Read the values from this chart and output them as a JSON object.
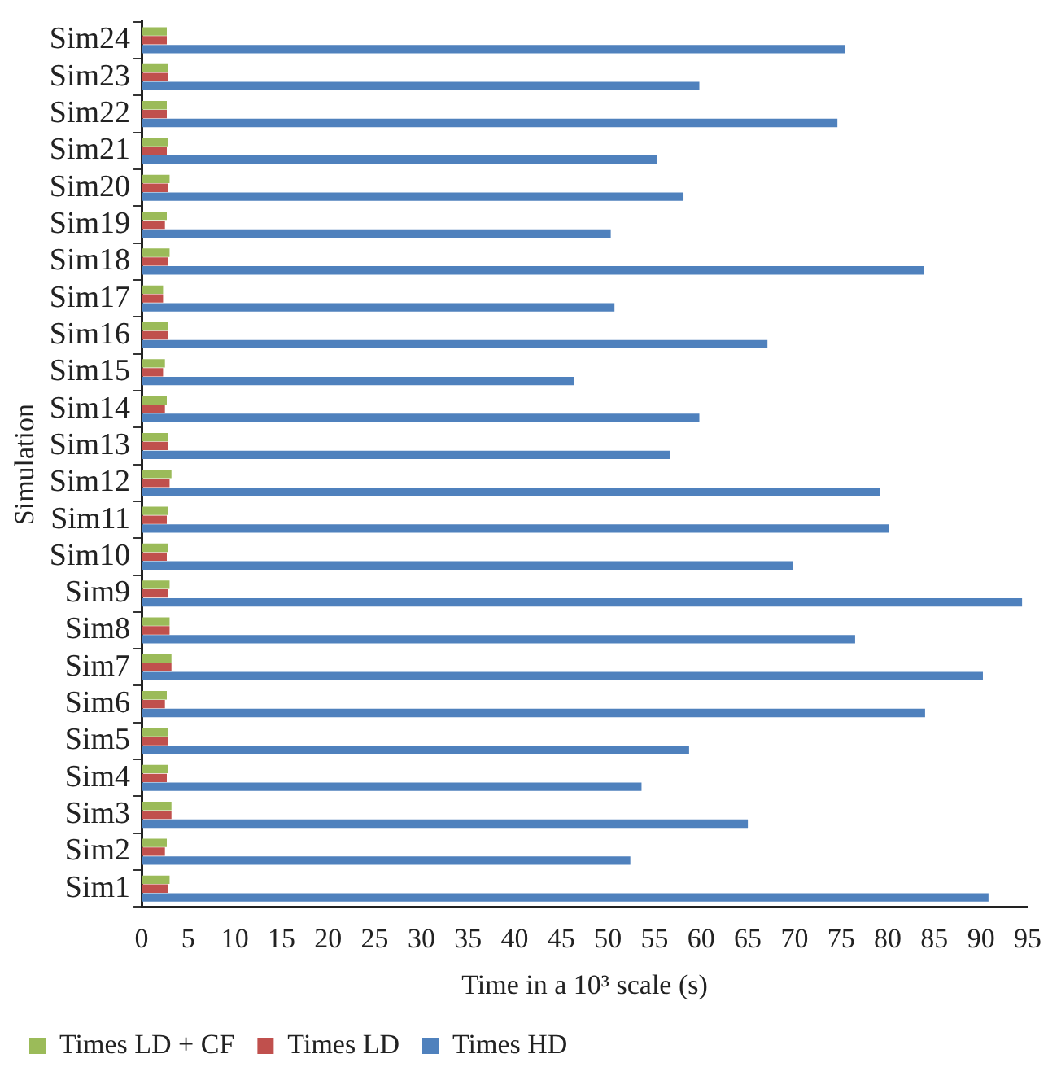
{
  "chart_data": {
    "type": "bar",
    "orientation": "horizontal",
    "xlabel": "Time in a 10³ scale (s)",
    "ylabel": "Simulation",
    "categories": [
      "Sim24",
      "Sim23",
      "Sim22",
      "Sim21",
      "Sim20",
      "Sim19",
      "Sim18",
      "Sim17",
      "Sim16",
      "Sim15",
      "Sim14",
      "Sim13",
      "Sim12",
      "Sim11",
      "Sim10",
      "Sim9",
      "Sim8",
      "Sim7",
      "Sim6",
      "Sim5",
      "Sim4",
      "Sim3",
      "Sim2",
      "Sim1"
    ],
    "series": [
      {
        "name": "Times LD + CF",
        "color": "#9bbb59",
        "values": [
          2.7,
          2.8,
          2.7,
          2.8,
          3.0,
          2.7,
          3.0,
          2.3,
          2.8,
          2.5,
          2.7,
          2.8,
          3.2,
          2.8,
          2.8,
          3.0,
          3.0,
          3.2,
          2.7,
          2.8,
          2.8,
          3.2,
          2.7,
          3.0
        ]
      },
      {
        "name": "Times LD",
        "color": "#c0504d",
        "values": [
          2.7,
          2.8,
          2.7,
          2.7,
          2.8,
          2.5,
          2.8,
          2.3,
          2.8,
          2.3,
          2.5,
          2.8,
          3.0,
          2.7,
          2.7,
          2.8,
          3.0,
          3.2,
          2.5,
          2.8,
          2.7,
          3.2,
          2.5,
          2.8
        ]
      },
      {
        "name": "Times HD",
        "color": "#4f81bd",
        "values": [
          75.4,
          59.8,
          74.6,
          55.3,
          58.1,
          50.3,
          83.9,
          50.7,
          67.1,
          46.4,
          59.8,
          56.7,
          79.2,
          80.1,
          69.8,
          94.4,
          76.5,
          90.2,
          84.0,
          58.7,
          53.6,
          65.0,
          52.4,
          90.8
        ]
      }
    ],
    "xlim": [
      0,
      95
    ],
    "xticks": [
      0,
      5,
      10,
      15,
      20,
      25,
      30,
      35,
      40,
      45,
      50,
      55,
      60,
      65,
      70,
      75,
      80,
      85,
      90,
      95
    ],
    "grid": false,
    "legend": "bottom"
  }
}
